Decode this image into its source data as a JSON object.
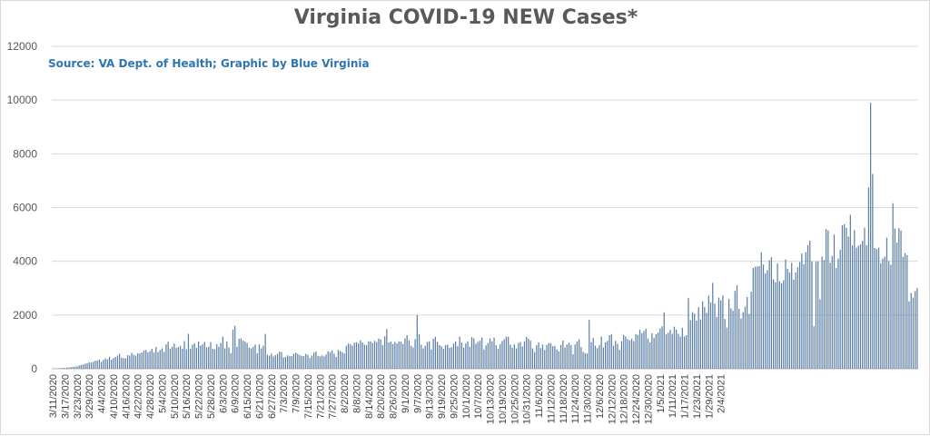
{
  "chart_data": {
    "type": "bar",
    "title": "Virginia COVID-19 NEW Cases*",
    "subtitle": "Source: VA Dept. of Health; Graphic by Blue Virginia",
    "xlabel": "",
    "ylabel": "",
    "ylim": [
      0,
      12000
    ],
    "y_ticks": [
      0,
      2000,
      4000,
      6000,
      8000,
      10000,
      12000
    ],
    "grid": true,
    "legend": "none",
    "bar_color": "#5b7fa6",
    "x_tick_labels": [
      "3/11/2020",
      "3/17/2020",
      "3/23/2020",
      "3/29/2020",
      "4/4/2020",
      "4/10/2020",
      "4/16/2020",
      "4/22/2020",
      "4/28/2020",
      "5/4/2020",
      "5/10/2020",
      "5/16/2020",
      "5/22/2020",
      "5/28/2020",
      "6/3/2020",
      "6/9/2020",
      "6/15/2020",
      "6/21/2020",
      "6/27/2020",
      "7/3/2020",
      "7/9/2020",
      "7/15/2020",
      "7/21/2020",
      "7/27/2020",
      "8/2/2020",
      "8/8/2020",
      "8/14/2020",
      "8/20/2020",
      "8/26/2020",
      "9/1/2020",
      "9/7/2020",
      "9/13/2020",
      "9/19/2020",
      "9/25/2020",
      "10/1/2020",
      "10/7/2020",
      "10/13/2020",
      "10/19/2020",
      "10/25/2020",
      "10/31/2020",
      "11/6/2020",
      "11/12/2020",
      "11/18/2020",
      "11/24/2020",
      "11/30/2020",
      "12/6/2020",
      "12/12/2020",
      "12/18/2020",
      "12/24/2020",
      "12/30/2020",
      "1/5/2021",
      "1/11/2021",
      "1/17/2021",
      "1/23/2021",
      "1/29/2021",
      "2/4/2021"
    ],
    "start_date": "3/11/2020",
    "values": [
      10,
      12,
      15,
      20,
      25,
      30,
      35,
      45,
      50,
      60,
      70,
      80,
      90,
      120,
      140,
      160,
      190,
      210,
      240,
      230,
      260,
      300,
      310,
      340,
      260,
      330,
      390,
      350,
      450,
      340,
      400,
      440,
      490,
      560,
      410,
      400,
      390,
      510,
      490,
      590,
      520,
      490,
      580,
      570,
      610,
      680,
      700,
      610,
      660,
      740,
      610,
      810,
      620,
      700,
      760,
      630,
      910,
      1010,
      740,
      820,
      940,
      780,
      810,
      860,
      750,
      1030,
      730,
      1300,
      750,
      900,
      950,
      780,
      1020,
      860,
      910,
      1000,
      800,
      820,
      990,
      740,
      720,
      920,
      820,
      960,
      1200,
      760,
      1020,
      790,
      580,
      1460,
      1600,
      820,
      1120,
      1130,
      1050,
      1010,
      960,
      790,
      760,
      820,
      900,
      580,
      910,
      760,
      860,
      1300,
      520,
      490,
      560,
      460,
      510,
      550,
      640,
      620,
      420,
      440,
      500,
      470,
      470,
      560,
      600,
      560,
      510,
      480,
      470,
      560,
      520,
      400,
      490,
      600,
      640,
      480,
      460,
      500,
      460,
      530,
      650,
      620,
      680,
      560,
      440,
      700,
      660,
      620,
      570,
      860,
      940,
      910,
      860,
      970,
      990,
      940,
      1060,
      980,
      900,
      880,
      1020,
      1020,
      960,
      1040,
      1000,
      1120,
      1090,
      880,
      1210,
      1480,
      980,
      1010,
      920,
      1000,
      940,
      1020,
      1010,
      920,
      1130,
      1250,
      1060,
      860,
      790,
      1100,
      2000,
      1290,
      890,
      760,
      850,
      1000,
      1020,
      720,
      1120,
      1190,
      1000,
      880,
      840,
      740,
      880,
      900,
      780,
      800,
      940,
      1020,
      840,
      1200,
      970,
      780,
      940,
      1020,
      820,
      1180,
      1130,
      930,
      1000,
      1050,
      1160,
      720,
      870,
      960,
      1130,
      1020,
      1160,
      880,
      740,
      920,
      1030,
      1100,
      1190,
      1190,
      900,
      780,
      910,
      760,
      960,
      1000,
      830,
      1020,
      1190,
      1120,
      1050,
      760,
      620,
      880,
      980,
      770,
      900,
      700,
      890,
      960,
      950,
      840,
      850,
      720,
      650,
      890,
      1050,
      790,
      900,
      970,
      880,
      540,
      900,
      1020,
      1100,
      810,
      630,
      580,
      570,
      1820,
      990,
      1150,
      860,
      770,
      880,
      1200,
      790,
      980,
      1040,
      1250,
      1290,
      860,
      1040,
      930,
      700,
      1030,
      1260,
      1200,
      1100,
      1060,
      1120,
      1030,
      1290,
      1260,
      1450,
      1320,
      1400,
      1490,
      1120,
      980,
      1320,
      1150,
      1290,
      1350,
      1500,
      1580,
      2100,
      1280,
      1340,
      1450,
      1300,
      1570,
      1460,
      1300,
      1200,
      1530,
      1200,
      1250,
      2630,
      1810,
      2110,
      2050,
      1790,
      2290,
      1840,
      2510,
      2300,
      2080,
      2720,
      2470,
      3200,
      2420,
      1930,
      2650,
      2550,
      2730,
      1850,
      1530,
      2600,
      2250,
      2160,
      2900,
      3110,
      2230,
      1870,
      2110,
      2310,
      2670,
      2040,
      2870,
      3750,
      3800,
      3810,
      3820,
      4340,
      3880,
      3550,
      3670,
      4040,
      4150,
      3330,
      3220,
      3920,
      3260,
      3180,
      3300,
      4070,
      3720,
      3580,
      3940,
      3320,
      3590,
      3780,
      3970,
      4290,
      3890,
      4340,
      4600,
      4770,
      4000,
      1580,
      3980,
      4000,
      2580,
      4180,
      4050,
      5200,
      5150,
      3950,
      4200,
      4990,
      3750,
      4100,
      4430,
      5340,
      5380,
      5250,
      4920,
      5730,
      4590,
      5160,
      4510,
      4580,
      4630,
      4760,
      5250,
      4600,
      6750,
      9900,
      7250,
      4500,
      4460,
      4510,
      3930,
      4100,
      4170,
      4880,
      4010,
      3870,
      6160,
      5220,
      4700,
      5240,
      5150,
      4160,
      4300,
      4230,
      2510,
      2820,
      2650,
      2890,
      3010
    ]
  }
}
